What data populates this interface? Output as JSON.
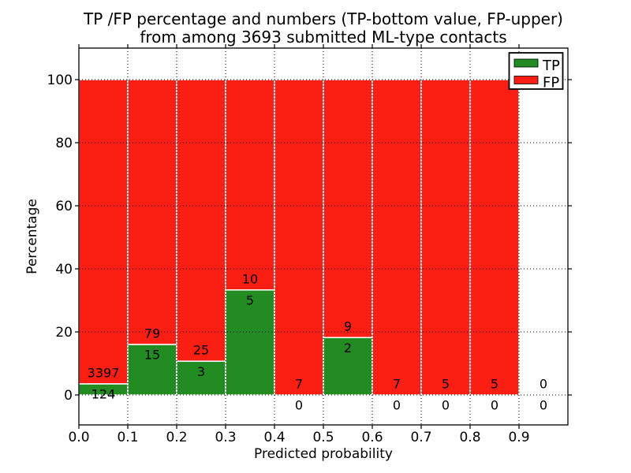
{
  "chart_data": {
    "type": "bar",
    "stacked": true,
    "title_line1": "TP /FP percentage and numbers (TP-bottom value, FP-upper)",
    "title_line2": "from among 3693 submitted ML-type contacts",
    "total_contacts": 3693,
    "xlabel": "Predicted probability",
    "ylabel": "Percentage",
    "xlim": [
      0.0,
      1.0
    ],
    "ylim": [
      -10,
      110
    ],
    "xticks": [
      "0.0",
      "0.1",
      "0.2",
      "0.3",
      "0.4",
      "0.5",
      "0.6",
      "0.7",
      "0.8",
      "0.9"
    ],
    "yticks": [
      "0",
      "20",
      "40",
      "60",
      "80",
      "100"
    ],
    "grid": "dotted",
    "legend": {
      "position": "upper-right",
      "entries": [
        {
          "label": "TP",
          "color": "#228b22"
        },
        {
          "label": "FP",
          "color": "#fb1e12"
        }
      ]
    },
    "bins": [
      {
        "x_start": 0.0,
        "x_end": 0.1,
        "tp_count": 124,
        "fp_count": 3397,
        "tp_pct": 3.5
      },
      {
        "x_start": 0.1,
        "x_end": 0.2,
        "tp_count": 15,
        "fp_count": 79,
        "tp_pct": 16.0
      },
      {
        "x_start": 0.2,
        "x_end": 0.3,
        "tp_count": 3,
        "fp_count": 25,
        "tp_pct": 10.7
      },
      {
        "x_start": 0.3,
        "x_end": 0.4,
        "tp_count": 5,
        "fp_count": 10,
        "tp_pct": 33.3
      },
      {
        "x_start": 0.4,
        "x_end": 0.5,
        "tp_count": 0,
        "fp_count": 7,
        "tp_pct": 0
      },
      {
        "x_start": 0.5,
        "x_end": 0.6,
        "tp_count": 2,
        "fp_count": 9,
        "tp_pct": 18.2
      },
      {
        "x_start": 0.6,
        "x_end": 0.7,
        "tp_count": 0,
        "fp_count": 7,
        "tp_pct": 0
      },
      {
        "x_start": 0.7,
        "x_end": 0.8,
        "tp_count": 0,
        "fp_count": 5,
        "tp_pct": 0
      },
      {
        "x_start": 0.8,
        "x_end": 0.9,
        "tp_count": 0,
        "fp_count": 5,
        "tp_pct": 0
      },
      {
        "x_start": 0.9,
        "x_end": 1.0,
        "tp_count": 0,
        "fp_count": 0,
        "tp_pct": 0
      }
    ],
    "colors": {
      "tp": "#228b22",
      "fp": "#fb1e12",
      "grid": "#000000",
      "spine": "#000000",
      "text": "#000000",
      "bar_edge": "#ffffff",
      "plot_bg": "#ffffff",
      "figure_bg": "#ffffff",
      "legend_bg": "#ffffff",
      "legend_border": "#000000"
    }
  }
}
